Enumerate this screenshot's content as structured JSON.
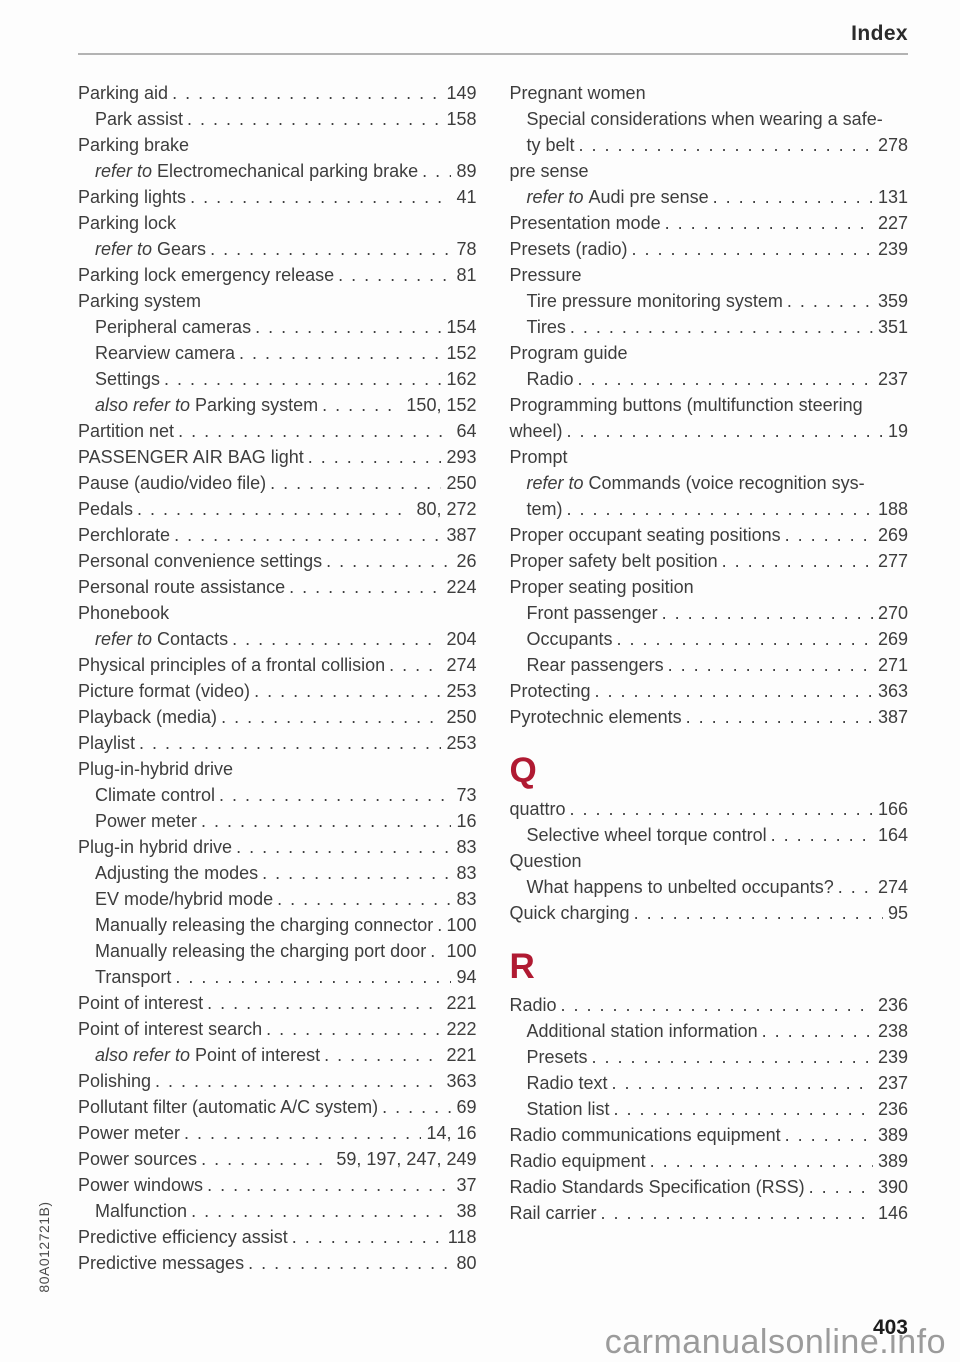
{
  "page": {
    "title": "Index",
    "page_number": "403",
    "doc_code": "80A012721B)",
    "watermark": "carmanualsonline.info"
  },
  "colors": {
    "accent": "#B01A32",
    "text": "#3D3D3D",
    "rule": "#B3B3B3",
    "watermark": "#9B9B9B"
  },
  "index": {
    "left_column": [
      {
        "text": "Parking aid",
        "page": "149",
        "indent": 0
      },
      {
        "text": "Park assist",
        "page": "158",
        "indent": 1
      },
      {
        "text": "Parking brake",
        "indent": 0
      },
      {
        "pre": "refer to ",
        "text": "Electromechanical parking brake",
        "page": "89",
        "indent": 1
      },
      {
        "text": "Parking lights",
        "page": "41",
        "indent": 0
      },
      {
        "text": "Parking lock",
        "indent": 0
      },
      {
        "pre": "refer to ",
        "text": "Gears",
        "page": "78",
        "indent": 1
      },
      {
        "text": "Parking lock emergency release",
        "page": "81",
        "indent": 0
      },
      {
        "text": "Parking system",
        "indent": 0
      },
      {
        "text": "Peripheral cameras",
        "page": "154",
        "indent": 1
      },
      {
        "text": "Rearview camera",
        "page": "152",
        "indent": 1
      },
      {
        "text": "Settings",
        "page": "162",
        "indent": 1
      },
      {
        "pre": "also refer to ",
        "text": "Parking system",
        "page": "150, 152",
        "indent": 1
      },
      {
        "text": "Partition net",
        "page": "64",
        "indent": 0
      },
      {
        "text": "PASSENGER AIR BAG light",
        "page": "293",
        "indent": 0
      },
      {
        "text": "Pause (audio/video file)",
        "page": "250",
        "indent": 0
      },
      {
        "text": "Pedals",
        "page": "80, 272",
        "indent": 0
      },
      {
        "text": "Perchlorate",
        "page": "387",
        "indent": 0
      },
      {
        "text": "Personal convenience settings",
        "page": "26",
        "indent": 0
      },
      {
        "text": "Personal route assistance",
        "page": "224",
        "indent": 0
      },
      {
        "text": "Phonebook",
        "indent": 0
      },
      {
        "pre": "refer to ",
        "text": "Contacts",
        "page": "204",
        "indent": 1
      },
      {
        "text": "Physical principles of a frontal collision",
        "page": "274",
        "indent": 0
      },
      {
        "text": "Picture format (video)",
        "page": "253",
        "indent": 0
      },
      {
        "text": "Playback (media)",
        "page": "250",
        "indent": 0
      },
      {
        "text": "Playlist",
        "page": "253",
        "indent": 0
      },
      {
        "text": "Plug-in-hybrid drive",
        "indent": 0
      },
      {
        "text": "Climate control",
        "page": "73",
        "indent": 1
      },
      {
        "text": "Power meter",
        "page": "16",
        "indent": 1
      },
      {
        "text": "Plug-in hybrid drive",
        "page": "83",
        "indent": 0
      },
      {
        "text": "Adjusting the modes",
        "page": "83",
        "indent": 1
      },
      {
        "text": "EV mode/hybrid mode",
        "page": "83",
        "indent": 1
      },
      {
        "text": "Manually releasing the charging connector",
        "page": "100",
        "indent": 1
      },
      {
        "text": "Manually releasing the charging port door",
        "page": "100",
        "indent": 1
      },
      {
        "text": "Transport",
        "page": "94",
        "indent": 1
      },
      {
        "text": "Point of interest",
        "page": "221",
        "indent": 0
      },
      {
        "text": "Point of interest search",
        "page": "222",
        "indent": 0
      },
      {
        "pre": "also refer to ",
        "text": "Point of interest",
        "page": "221",
        "indent": 1
      },
      {
        "text": "Polishing",
        "page": "363",
        "indent": 0
      },
      {
        "text": "Pollutant filter (automatic A/C system)",
        "page": "69",
        "indent": 0
      },
      {
        "text": "Power meter",
        "page": "14, 16",
        "indent": 0
      },
      {
        "text": "Power sources",
        "page": "59, 197, 247, 249",
        "indent": 0
      },
      {
        "text": "Power windows",
        "page": "37",
        "indent": 0
      },
      {
        "text": "Malfunction",
        "page": "38",
        "indent": 1
      },
      {
        "text": "Predictive efficiency assist",
        "page": "118",
        "indent": 0
      },
      {
        "text": "Predictive messages",
        "page": "80",
        "indent": 0
      }
    ],
    "right_column": [
      {
        "text": "Pregnant women",
        "indent": 0
      },
      {
        "text": "Special considerations when wearing a safe-",
        "indent": 1
      },
      {
        "text": "ty belt",
        "page": "278",
        "indent": 1
      },
      {
        "text": "pre sense",
        "indent": 0
      },
      {
        "pre": "refer to ",
        "text": "Audi pre sense",
        "page": "131",
        "indent": 1
      },
      {
        "text": "Presentation mode",
        "page": "227",
        "indent": 0
      },
      {
        "text": "Presets (radio)",
        "page": "239",
        "indent": 0
      },
      {
        "text": "Pressure",
        "indent": 0
      },
      {
        "text": "Tire pressure monitoring system",
        "page": "359",
        "indent": 1
      },
      {
        "text": "Tires",
        "page": "351",
        "indent": 1
      },
      {
        "text": "Program guide",
        "indent": 0
      },
      {
        "text": "Radio",
        "page": "237",
        "indent": 1
      },
      {
        "text": "Programming buttons (multifunction steering",
        "indent": 0
      },
      {
        "text": "wheel)",
        "page": "19",
        "indent": 0
      },
      {
        "text": "Prompt",
        "indent": 0
      },
      {
        "pre": "refer to ",
        "text": "Commands (voice recognition sys-",
        "indent": 1
      },
      {
        "text": "tem)",
        "page": "188",
        "indent": 1
      },
      {
        "text": "Proper occupant seating positions",
        "page": "269",
        "indent": 0
      },
      {
        "text": "Proper safety belt position",
        "page": "277",
        "indent": 0
      },
      {
        "text": "Proper seating position",
        "indent": 0
      },
      {
        "text": "Front passenger",
        "page": "270",
        "indent": 1
      },
      {
        "text": "Occupants",
        "page": "269",
        "indent": 1
      },
      {
        "text": "Rear passengers",
        "page": "271",
        "indent": 1
      },
      {
        "text": "Protecting",
        "page": "363",
        "indent": 0
      },
      {
        "text": "Pyrotechnic elements",
        "page": "387",
        "indent": 0
      },
      {
        "letter": "Q"
      },
      {
        "text": "quattro",
        "page": "166",
        "indent": 0
      },
      {
        "text": "Selective wheel torque control",
        "page": "164",
        "indent": 1
      },
      {
        "text": "Question",
        "indent": 0
      },
      {
        "text": "What happens to unbelted occupants?",
        "page": "274",
        "indent": 1
      },
      {
        "text": "Quick charging",
        "page": "95",
        "indent": 0
      },
      {
        "letter": "R"
      },
      {
        "text": "Radio",
        "page": "236",
        "indent": 0
      },
      {
        "text": "Additional station information",
        "page": "238",
        "indent": 1
      },
      {
        "text": "Presets",
        "page": "239",
        "indent": 1
      },
      {
        "text": "Radio text",
        "page": "237",
        "indent": 1
      },
      {
        "text": "Station list",
        "page": "236",
        "indent": 1
      },
      {
        "text": "Radio communications equipment",
        "page": "389",
        "indent": 0
      },
      {
        "text": "Radio equipment",
        "page": "389",
        "indent": 0
      },
      {
        "text": "Radio Standards Specification (RSS)",
        "page": "390",
        "indent": 0
      },
      {
        "text": "Rail carrier",
        "page": "146",
        "indent": 0
      }
    ]
  }
}
